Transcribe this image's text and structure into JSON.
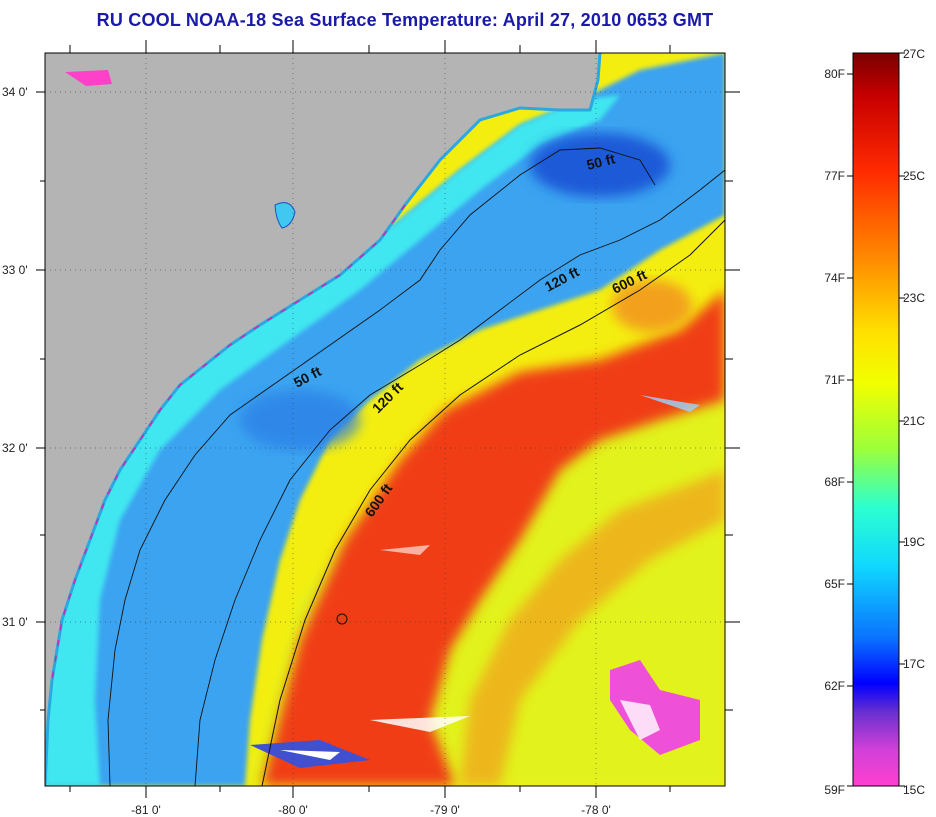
{
  "title": "RU COOL  NOAA-18  Sea Surface Temperature:  April 27, 2010 0653 GMT",
  "map": {
    "lat_ticks": [
      "34 0'",
      "33 0'",
      "32 0'",
      "31 0'"
    ],
    "lon_ticks": [
      "-81 0'",
      "-80 0'",
      "-79 0'",
      "-78 0'"
    ],
    "contour_labels": [
      "50 ft",
      "120 ft",
      "600 ft",
      "50 ft",
      "120 ft",
      "600 ft"
    ],
    "colors": {
      "land": "#b4b4b4",
      "cold": "#3aa3f0",
      "warm": "#f03c12",
      "mid": "#f6f208"
    }
  },
  "colorbar": {
    "fahrenheit": [
      "80F",
      "77F",
      "74F",
      "71F",
      "68F",
      "65F",
      "62F",
      "59F"
    ],
    "celsius": [
      "27C",
      "25C",
      "23C",
      "21C",
      "19C",
      "17C",
      "15C"
    ]
  }
}
